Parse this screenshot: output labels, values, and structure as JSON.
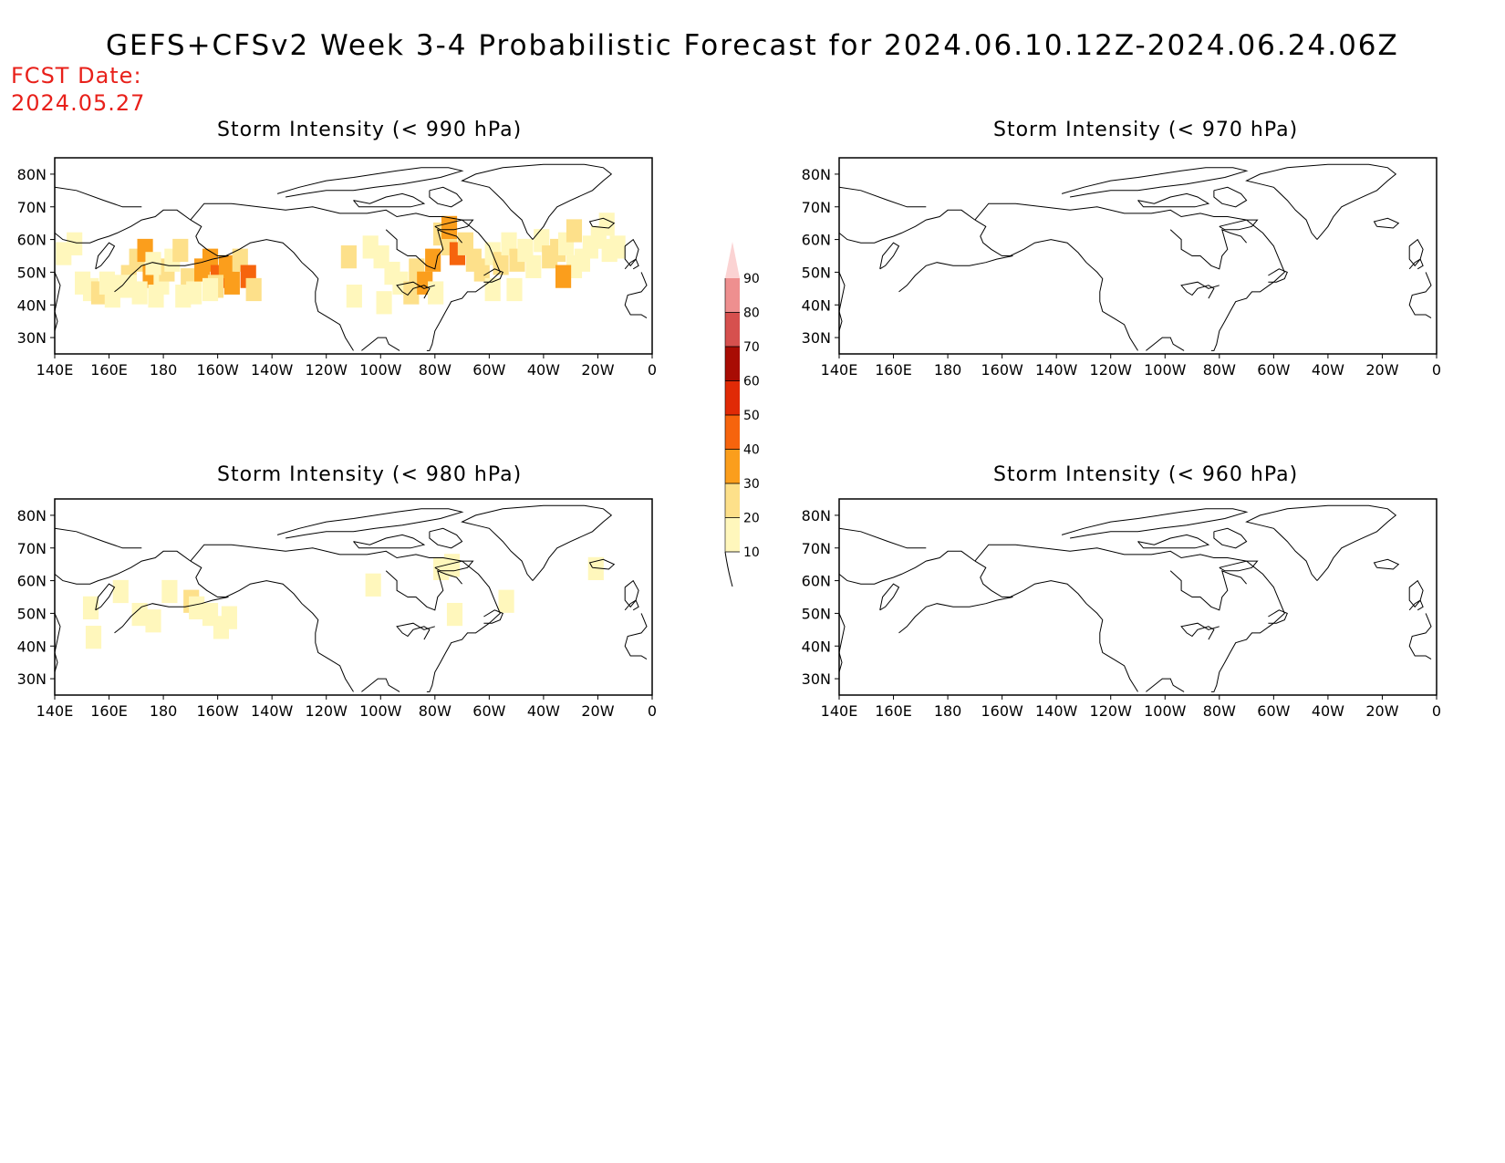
{
  "title": "GEFS+CFSv2 Week 3-4 Probabilistic Forecast for 2024.06.10.12Z-2024.06.24.06Z",
  "fcst": {
    "line1": "FCST Date:",
    "line2": "2024.05.27"
  },
  "lat_ticks": [
    "80N",
    "70N",
    "60N",
    "50N",
    "40N",
    "30N"
  ],
  "lon_ticks": [
    "140E",
    "160E",
    "180",
    "160W",
    "140W",
    "120W",
    "100W",
    "80W",
    "60W",
    "40W",
    "20W",
    "0"
  ],
  "colorbar": {
    "levels": [
      10,
      20,
      30,
      40,
      50,
      60,
      70,
      80,
      90
    ],
    "colors": [
      "#fff7bc",
      "#fde08a",
      "#fb9e1c",
      "#f6640d",
      "#e02a06",
      "#a80c04",
      "#d6504e",
      "#ee8f8f",
      "#fbd3d3"
    ]
  },
  "chart_data": [
    {
      "type": "heatmap",
      "title": "Storm Intensity (< 990 hPa)",
      "xlim": [
        140,
        360
      ],
      "ylim": [
        25,
        85
      ],
      "cells": [
        [
          142,
          57,
          1
        ],
        [
          146,
          60,
          1
        ],
        [
          149,
          48,
          1
        ],
        [
          152,
          46,
          1
        ],
        [
          155,
          45,
          2
        ],
        [
          158,
          48,
          1
        ],
        [
          160,
          44,
          1
        ],
        [
          163,
          47,
          1
        ],
        [
          166,
          50,
          2
        ],
        [
          169,
          55,
          2
        ],
        [
          172,
          58,
          3
        ],
        [
          174,
          50,
          3
        ],
        [
          178,
          48,
          1
        ],
        [
          180,
          52,
          2
        ],
        [
          182,
          55,
          1
        ],
        [
          185,
          58,
          2
        ],
        [
          188,
          49,
          2
        ],
        [
          190,
          45,
          1
        ],
        [
          193,
          52,
          3
        ],
        [
          196,
          55,
          3
        ],
        [
          199,
          50,
          4
        ],
        [
          202,
          53,
          3
        ],
        [
          204,
          48,
          3
        ],
        [
          207,
          55,
          2
        ],
        [
          210,
          50,
          4
        ],
        [
          212,
          46,
          2
        ],
        [
          166,
          47,
          1
        ],
        [
          170,
          45,
          1
        ],
        [
          176,
          44,
          1
        ],
        [
          186,
          44,
          1
        ],
        [
          198,
          47,
          2
        ],
        [
          175,
          54,
          1
        ],
        [
          196,
          46,
          1
        ],
        [
          247,
          56,
          2
        ],
        [
          249,
          44,
          1
        ],
        [
          255,
          59,
          1
        ],
        [
          259,
          56,
          1
        ],
        [
          263,
          51,
          1
        ],
        [
          266,
          48,
          1
        ],
        [
          270,
          45,
          2
        ],
        [
          272,
          52,
          2
        ],
        [
          275,
          48,
          3
        ],
        [
          278,
          55,
          3
        ],
        [
          281,
          63,
          2
        ],
        [
          284,
          60,
          2
        ],
        [
          287,
          57,
          4
        ],
        [
          284,
          65,
          3
        ],
        [
          290,
          60,
          2
        ],
        [
          293,
          55,
          2
        ],
        [
          296,
          52,
          2
        ],
        [
          300,
          57,
          1
        ],
        [
          303,
          54,
          2
        ],
        [
          306,
          60,
          1
        ],
        [
          309,
          55,
          2
        ],
        [
          312,
          58,
          1
        ],
        [
          315,
          53,
          1
        ],
        [
          318,
          61,
          1
        ],
        [
          321,
          56,
          2
        ],
        [
          324,
          58,
          2
        ],
        [
          327,
          60,
          1
        ],
        [
          330,
          64,
          2
        ],
        [
          330,
          53,
          1
        ],
        [
          333,
          55,
          1
        ],
        [
          336,
          59,
          1
        ],
        [
          339,
          62,
          1
        ],
        [
          342,
          66,
          1
        ],
        [
          343,
          58,
          1
        ],
        [
          346,
          59,
          1
        ],
        [
          326,
          50,
          3
        ],
        [
          279,
          45,
          1
        ],
        [
          308,
          46,
          1
        ],
        [
          300,
          46,
          1
        ],
        [
          260,
          42,
          1
        ]
      ]
    },
    {
      "type": "heatmap",
      "title": "Storm Intensity (< 980 hPa)",
      "xlim": [
        140,
        360
      ],
      "ylim": [
        25,
        85
      ],
      "cells": [
        [
          152,
          53,
          1
        ],
        [
          153,
          44,
          1
        ],
        [
          163,
          58,
          1
        ],
        [
          170,
          51,
          1
        ],
        [
          175,
          49,
          1
        ],
        [
          181,
          58,
          1
        ],
        [
          189,
          55,
          2
        ],
        [
          191,
          53,
          1
        ],
        [
          196,
          51,
          1
        ],
        [
          200,
          47,
          1
        ],
        [
          203,
          50,
          1
        ],
        [
          285,
          66,
          1
        ],
        [
          286,
          51,
          1
        ],
        [
          305,
          55,
          1
        ],
        [
          338,
          65,
          1
        ],
        [
          281,
          65,
          1
        ],
        [
          256,
          60,
          1
        ]
      ]
    },
    {
      "type": "heatmap",
      "title": "Storm Intensity (< 970 hPa)",
      "xlim": [
        140,
        360
      ],
      "ylim": [
        25,
        85
      ],
      "cells": []
    },
    {
      "type": "heatmap",
      "title": "Storm Intensity (< 960 hPa)",
      "xlim": [
        140,
        360
      ],
      "ylim": [
        25,
        85
      ],
      "cells": []
    }
  ]
}
